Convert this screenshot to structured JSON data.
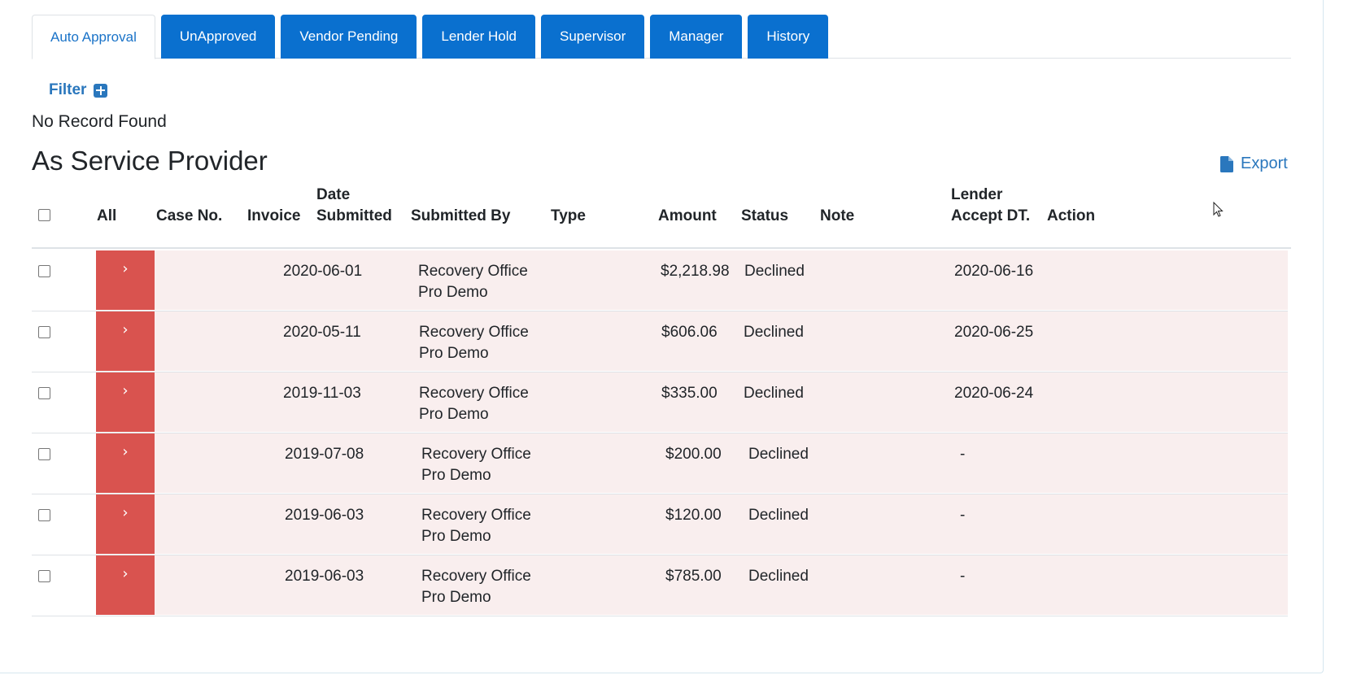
{
  "tabs": [
    {
      "label": "Auto Approval",
      "active": true
    },
    {
      "label": "UnApproved",
      "active": false
    },
    {
      "label": "Vendor Pending",
      "active": false
    },
    {
      "label": "Lender Hold",
      "active": false
    },
    {
      "label": "Supervisor",
      "active": false
    },
    {
      "label": "Manager",
      "active": false
    },
    {
      "label": "History",
      "active": false
    }
  ],
  "filter": {
    "label": "Filter",
    "icon": "plus-square-icon"
  },
  "no_record": "No Record Found",
  "section": {
    "title": "As Service Provider",
    "export_label": "Export",
    "export_icon": "file-icon"
  },
  "table": {
    "headers": {
      "all": "All",
      "case_no": "Case No.",
      "invoice": "Invoice",
      "date_submitted_1": "Date",
      "date_submitted_2": "Submitted",
      "submitted_by": "Submitted By",
      "type": "Type",
      "amount": "Amount",
      "status": "Status",
      "note": "Note",
      "lender_1": "Lender",
      "lender_2": "Accept DT.",
      "action": "Action"
    },
    "expand_glyph": "›",
    "rows": [
      {
        "date": "2020-06-01",
        "by1": "Recovery Office",
        "by2": "Pro Demo",
        "amount": "$2,218.98",
        "status": "Declined",
        "lender_dt": "2020-06-16"
      },
      {
        "date": "2020-05-11",
        "by1": "Recovery Office",
        "by2": "Pro Demo",
        "amount": "$606.06",
        "status": "Declined",
        "lender_dt": "2020-06-25"
      },
      {
        "date": "2019-11-03",
        "by1": "Recovery Office",
        "by2": "Pro Demo",
        "amount": "$335.00",
        "status": "Declined",
        "lender_dt": "2020-06-24"
      },
      {
        "date": "2019-07-08",
        "by1": "Recovery Office",
        "by2": "Pro Demo",
        "amount": "$200.00",
        "status": "Declined",
        "lender_dt": "-"
      },
      {
        "date": "2019-06-03",
        "by1": "Recovery Office",
        "by2": "Pro Demo",
        "amount": "$120.00",
        "status": "Declined",
        "lender_dt": "-"
      },
      {
        "date": "2019-06-03",
        "by1": "Recovery Office",
        "by2": "Pro Demo",
        "amount": "$785.00",
        "status": "Declined",
        "lender_dt": "-"
      }
    ]
  },
  "colors": {
    "tab_blue": "#0a70cf",
    "link_blue": "#2a77bd",
    "expand_red": "#d9534f",
    "row_bg": "#f9eeee"
  }
}
